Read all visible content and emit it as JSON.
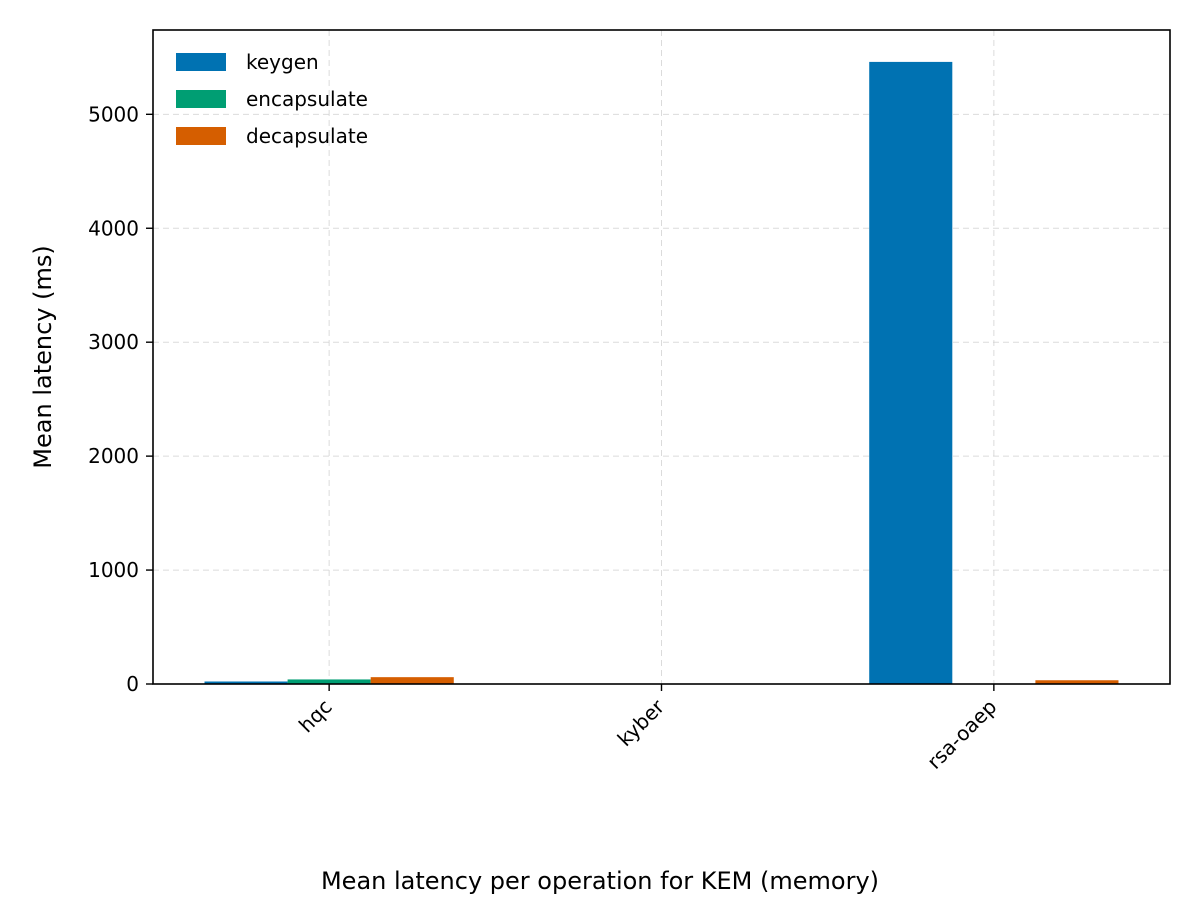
{
  "chart_data": {
    "type": "bar",
    "categories": [
      "hqc",
      "kyber",
      "rsa-oaep"
    ],
    "series": [
      {
        "name": "keygen",
        "color": "#0072b2",
        "values": [
          22,
          0.5,
          5460
        ]
      },
      {
        "name": "encapsulate",
        "color": "#009e73",
        "values": [
          40,
          0.6,
          2
        ]
      },
      {
        "name": "decapsulate",
        "color": "#d55e00",
        "values": [
          60,
          0.7,
          33
        ]
      }
    ],
    "xlabel": "",
    "ylabel": "Mean latency (ms)",
    "caption": "Mean latency per operation for KEM (memory)",
    "ylim": [
      0,
      5740
    ],
    "yticks": [
      0,
      1000,
      2000,
      3000,
      4000,
      5000
    ],
    "grid": true,
    "legend_position": "top-left"
  }
}
